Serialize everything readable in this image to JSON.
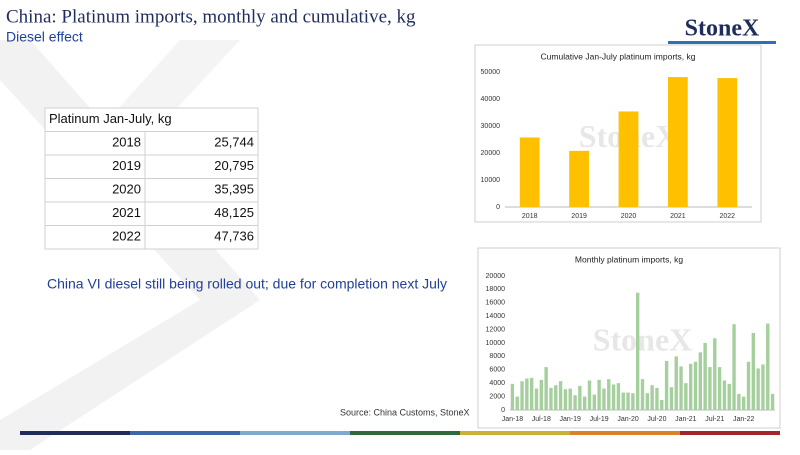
{
  "header": {
    "title": "China: Platinum imports, monthly and cumulative, kg",
    "subtitle": "Diesel effect",
    "logo": "StoneX"
  },
  "table": {
    "title": "Platinum Jan-July, kg",
    "rows": [
      [
        "2018",
        "25,744"
      ],
      [
        "2019",
        "20,795"
      ],
      [
        "2020",
        "35,395"
      ],
      [
        "2021",
        "48,125"
      ],
      [
        "2022",
        "47,736"
      ]
    ]
  },
  "note": "China VI diesel still being rolled out; due for completion next July",
  "source": "Source: China Customs, StoneX",
  "chart_data": [
    {
      "type": "bar",
      "title": "Cumulative Jan-July platinum imports, kg",
      "categories": [
        "2018",
        "2019",
        "2020",
        "2021",
        "2022"
      ],
      "values": [
        25744,
        20795,
        35395,
        48125,
        47736
      ],
      "color": "#ffc000",
      "ylim": [
        0,
        50000
      ],
      "yticks": [
        0,
        10000,
        20000,
        30000,
        40000,
        50000
      ],
      "grid": false
    },
    {
      "type": "bar",
      "title": "Monthly platinum imports, kg",
      "categories": [
        "Jan-18",
        null,
        null,
        null,
        null,
        null,
        "Jul-18",
        null,
        null,
        null,
        null,
        null,
        "Jan-19",
        null,
        null,
        null,
        null,
        null,
        "Jul-19",
        null,
        null,
        null,
        null,
        null,
        "Jan-20",
        null,
        null,
        null,
        null,
        null,
        "Jul-20",
        null,
        null,
        null,
        null,
        null,
        "Jan-21",
        null,
        null,
        null,
        null,
        null,
        "Jul-21",
        null,
        null,
        null,
        null,
        null,
        "Jan-22",
        null,
        null,
        null,
        null,
        null,
        null
      ],
      "values": [
        3900,
        2000,
        4300,
        4700,
        4800,
        3200,
        4500,
        6400,
        3300,
        3700,
        4300,
        3100,
        3200,
        2200,
        3600,
        2000,
        4400,
        2300,
        4500,
        3200,
        4600,
        3800,
        4000,
        2600,
        2600,
        2500,
        17500,
        4600,
        2500,
        3700,
        3300,
        1500,
        7300,
        3400,
        8000,
        6500,
        4000,
        6900,
        7200,
        8600,
        10000,
        6400,
        10700,
        6400,
        4400,
        3900,
        12800,
        2400,
        2000,
        7200,
        11500,
        6200,
        6800,
        12900,
        2400
      ],
      "color": "#a5cf9c",
      "ylim": [
        0,
        20000
      ],
      "yticks": [
        0,
        2000,
        4000,
        6000,
        8000,
        10000,
        12000,
        14000,
        16000,
        18000,
        20000
      ],
      "grid": false
    }
  ]
}
